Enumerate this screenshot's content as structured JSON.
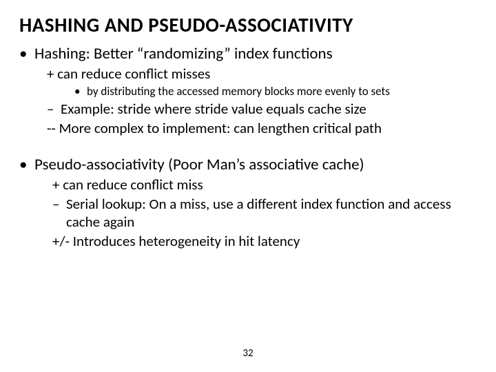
{
  "fontsize": {
    "title": 29,
    "l1": 23,
    "l2": 21,
    "l3": 17,
    "pagenum": 15
  },
  "title": "HASHING AND PSEUDO-ASSOCIATIVITY",
  "hashing": {
    "heading": "Hashing: Better “randomizing” index functions",
    "plus": "+ can reduce conflict misses",
    "sub": "by distributing the accessed memory blocks more evenly to sets",
    "example": "Example: stride where stride value equals cache size",
    "minus": "-- More complex to implement: can lengthen critical path"
  },
  "pseudo": {
    "heading": "Pseudo-associativity (Poor Man’s associative cache)",
    "plus": "+ can reduce conflict miss",
    "serial": "Serial lookup: On a miss, use a different index function and access cache again",
    "hetero": "+/- Introduces heterogeneity in hit latency"
  },
  "pagenum": "32"
}
